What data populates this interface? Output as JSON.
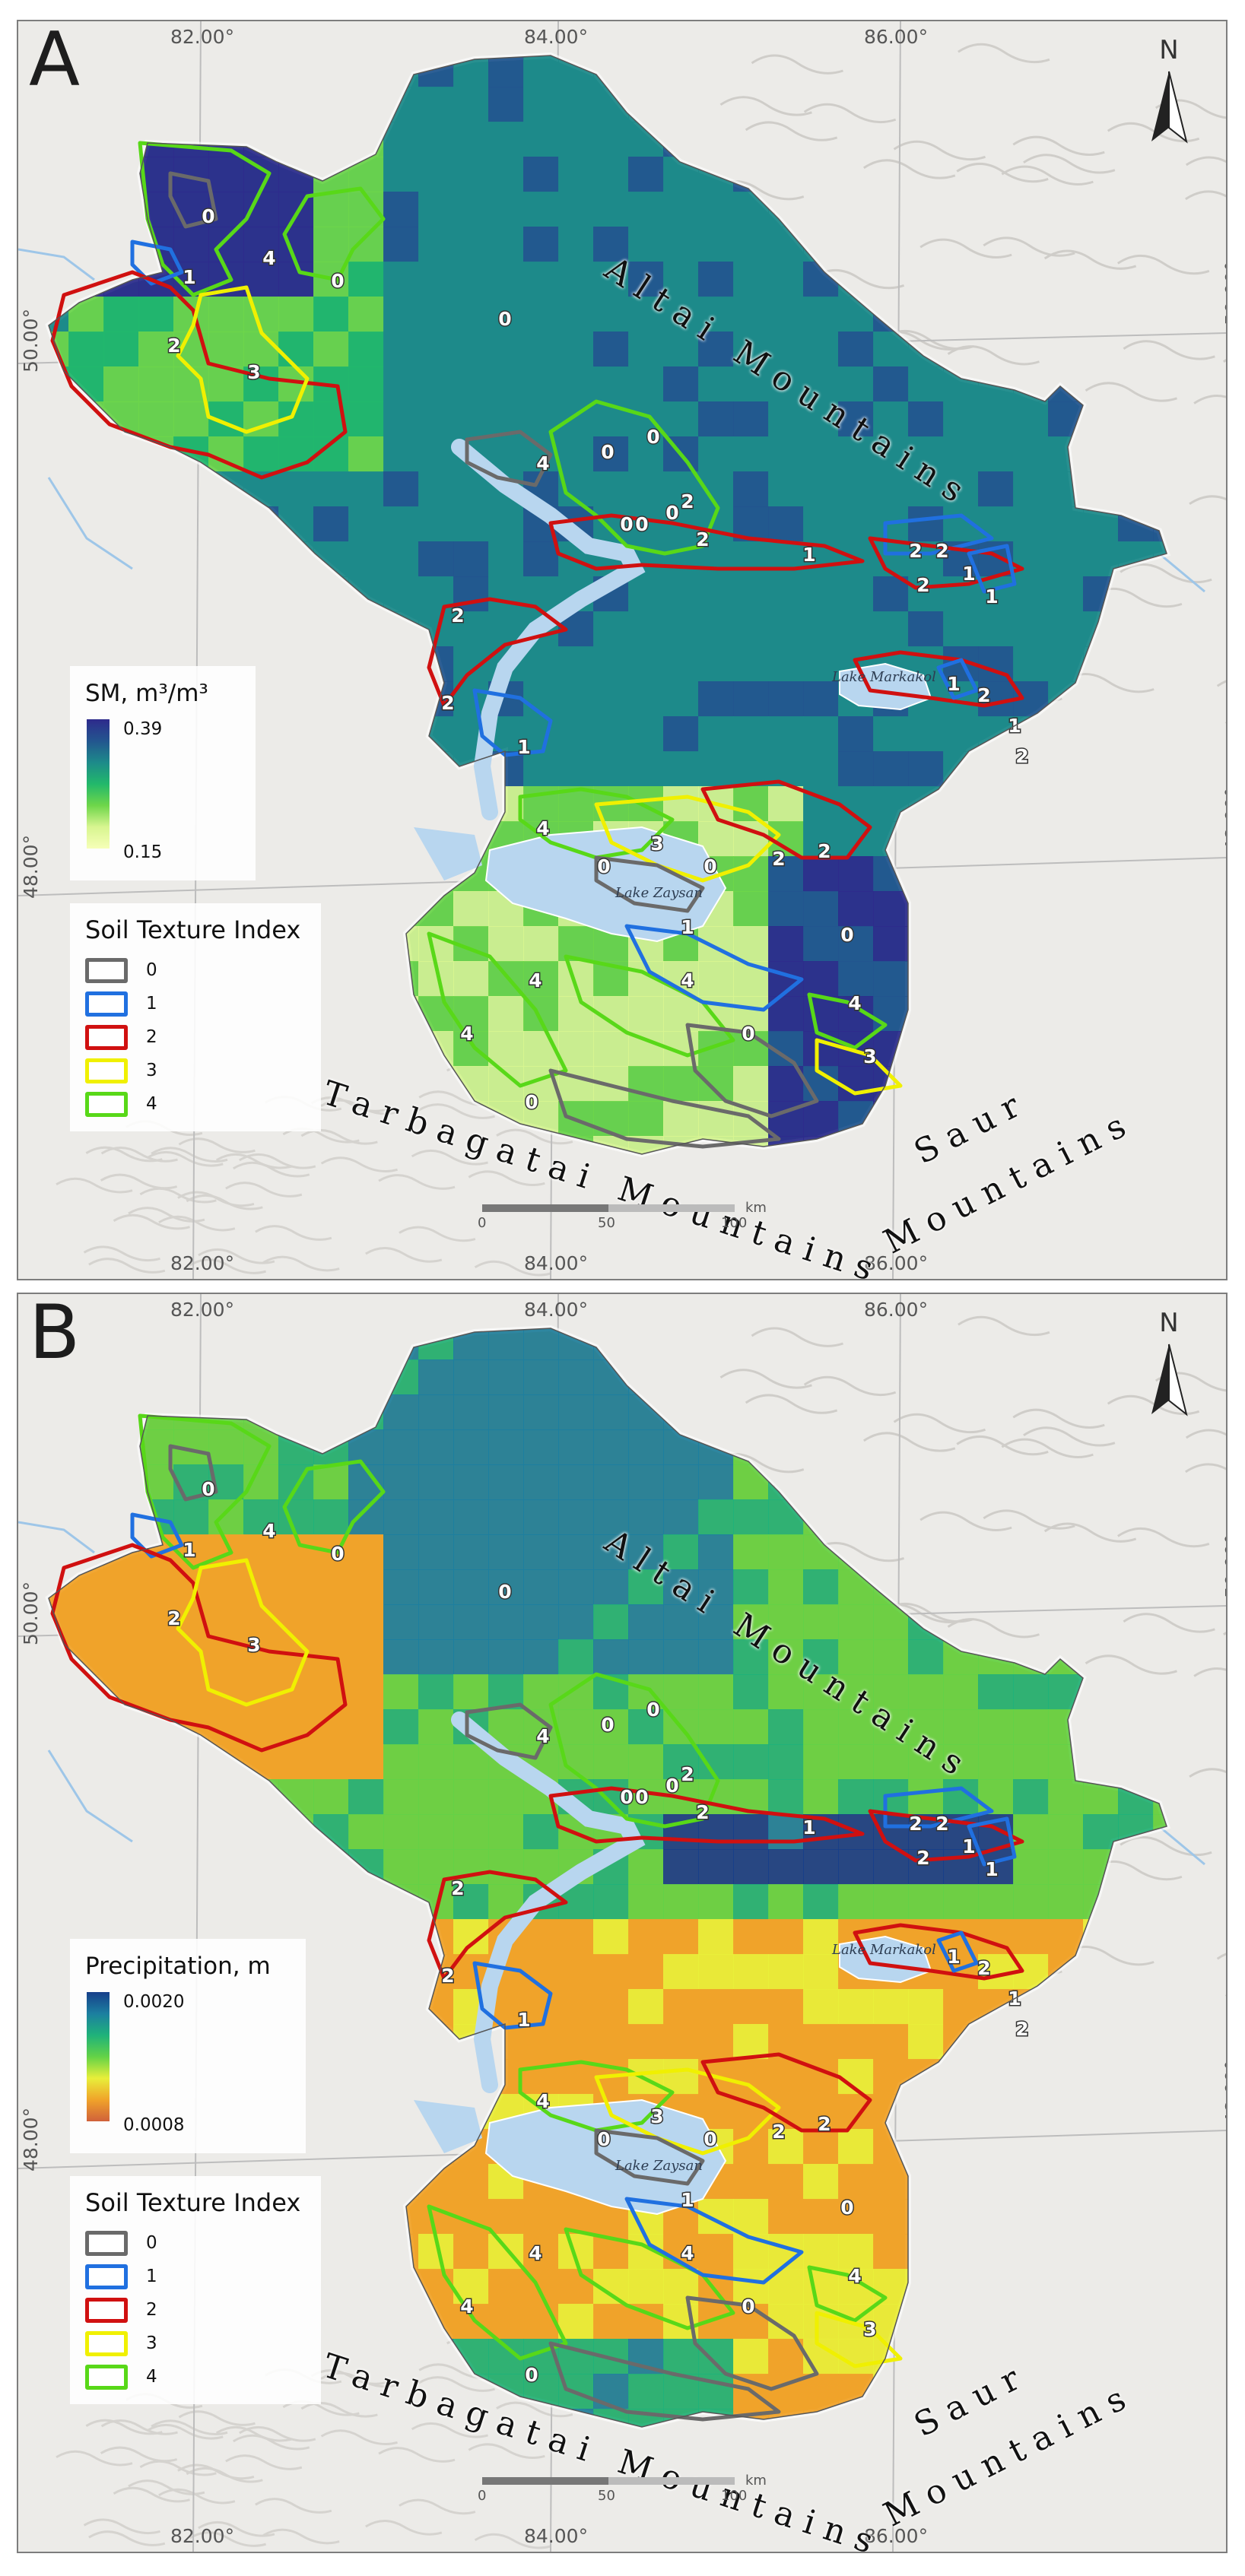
{
  "panels": [
    {
      "id": "A",
      "label": "A",
      "theme": "sm",
      "legend_title": "SM, m³/m³",
      "legend_max": "0.39",
      "legend_min": "0.15",
      "legend_colors": [
        "#2e2a8c",
        "#23558f",
        "#1d8a8a",
        "#22b86b",
        "#6ed64a",
        "#d8f590",
        "#f6ffb8"
      ]
    },
    {
      "id": "B",
      "label": "B",
      "theme": "precip",
      "legend_title": "Precipitation, m",
      "legend_max": "0.0020",
      "legend_min": "0.0008",
      "legend_colors": [
        "#173f8a",
        "#1c7fa0",
        "#1fb27a",
        "#63d247",
        "#e8ef3a",
        "#f0a32a",
        "#d0613a"
      ]
    }
  ],
  "longitude_labels": [
    "82.00°",
    "84.00°",
    "86.00°"
  ],
  "latitude_labels": [
    "50.00°",
    "48.00°"
  ],
  "north_label": "N",
  "mountains": {
    "altai": "Altai Mountains",
    "tarbagatai": "Tarbagatai Mountains",
    "saur_1": "Saur",
    "saur_2": "Mountains"
  },
  "lakes": {
    "markakol": "Lake Markakol",
    "zaysan": "Lake Zaysan"
  },
  "soil_texture": {
    "title": "Soil Texture Index",
    "classes": [
      {
        "value": "0",
        "color": "#6a6a6a"
      },
      {
        "value": "1",
        "color": "#2070e0"
      },
      {
        "value": "2",
        "color": "#d01010"
      },
      {
        "value": "3",
        "color": "#f0f000"
      },
      {
        "value": "4",
        "color": "#58d818"
      }
    ]
  },
  "scale_bar": {
    "ticks": [
      "0",
      "50",
      "100"
    ],
    "unit": "km"
  },
  "zone_labels": [
    "0",
    "4",
    "0",
    "1",
    "2",
    "3",
    "0",
    "4",
    "0",
    "0",
    "0",
    "0",
    "0",
    "2",
    "2",
    "1",
    "2",
    "2",
    "1",
    "2",
    "2",
    "1",
    "2",
    "1",
    "1",
    "2",
    "1",
    "2",
    "4",
    "3",
    "0",
    "0",
    "2",
    "2",
    "0",
    "4",
    "4",
    "1",
    "4",
    "4",
    "3",
    "0",
    "0"
  ],
  "colors": {
    "water": "#b8d6ef",
    "terrain": "#ecebe8",
    "border": "#9a9a9a"
  }
}
